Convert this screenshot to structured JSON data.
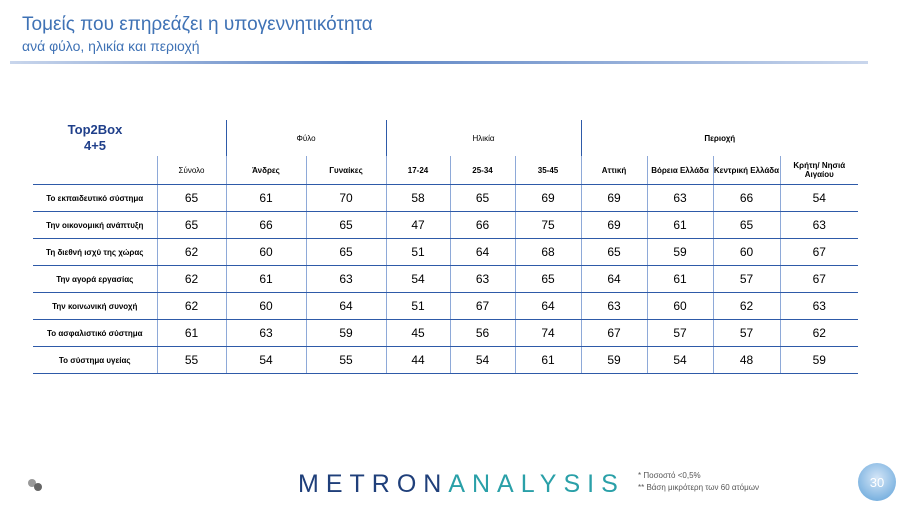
{
  "header": {
    "title": "Τομείς που επηρεάζει η υπογεννητικότητα",
    "subtitle": "ανά φύλο, ηλικία και περιοχή"
  },
  "table": {
    "corner": [
      "Top2Box",
      "4+5"
    ],
    "groups": [
      "Φύλο",
      "Ηλικία",
      "Περιοχή"
    ],
    "columns": [
      "Σύνολο",
      "Άνδρες",
      "Γυναίκες",
      "17-24",
      "25-34",
      "35-45",
      "Αττική",
      "Βόρεια Ελλάδα",
      "Κεντρική Ελλάδα",
      "Κρήτη/ Νησιά Αιγαίου"
    ],
    "rows": [
      {
        "label": "Το εκπαιδευτικό σύστημα",
        "values": [
          65,
          61,
          70,
          58,
          65,
          69,
          69,
          63,
          66,
          54
        ]
      },
      {
        "label": "Την οικονομική ανάπτυξη",
        "values": [
          65,
          66,
          65,
          47,
          66,
          75,
          69,
          61,
          65,
          63
        ]
      },
      {
        "label": "Τη διεθνή ισχύ της χώρας",
        "values": [
          62,
          60,
          65,
          51,
          64,
          68,
          65,
          59,
          60,
          67
        ]
      },
      {
        "label": "Την αγορά εργασίας",
        "values": [
          62,
          61,
          63,
          54,
          63,
          65,
          64,
          61,
          57,
          67
        ]
      },
      {
        "label": "Την κοινωνική συνοχή",
        "values": [
          62,
          60,
          64,
          51,
          67,
          64,
          63,
          60,
          62,
          63
        ]
      },
      {
        "label": "Το ασφαλιστικό σύστημα",
        "values": [
          61,
          63,
          59,
          45,
          56,
          74,
          67,
          57,
          57,
          62
        ]
      },
      {
        "label": "Το σύστημα υγείας",
        "values": [
          55,
          54,
          55,
          44,
          54,
          61,
          59,
          54,
          48,
          59
        ]
      }
    ]
  },
  "footer": {
    "logo": [
      "METRON",
      "ANALYSIS"
    ],
    "notes": [
      "*  Ποσοστό <0,5%",
      "**  Βάση μικρότερη των 60 ατόμων"
    ],
    "page": "30"
  }
}
